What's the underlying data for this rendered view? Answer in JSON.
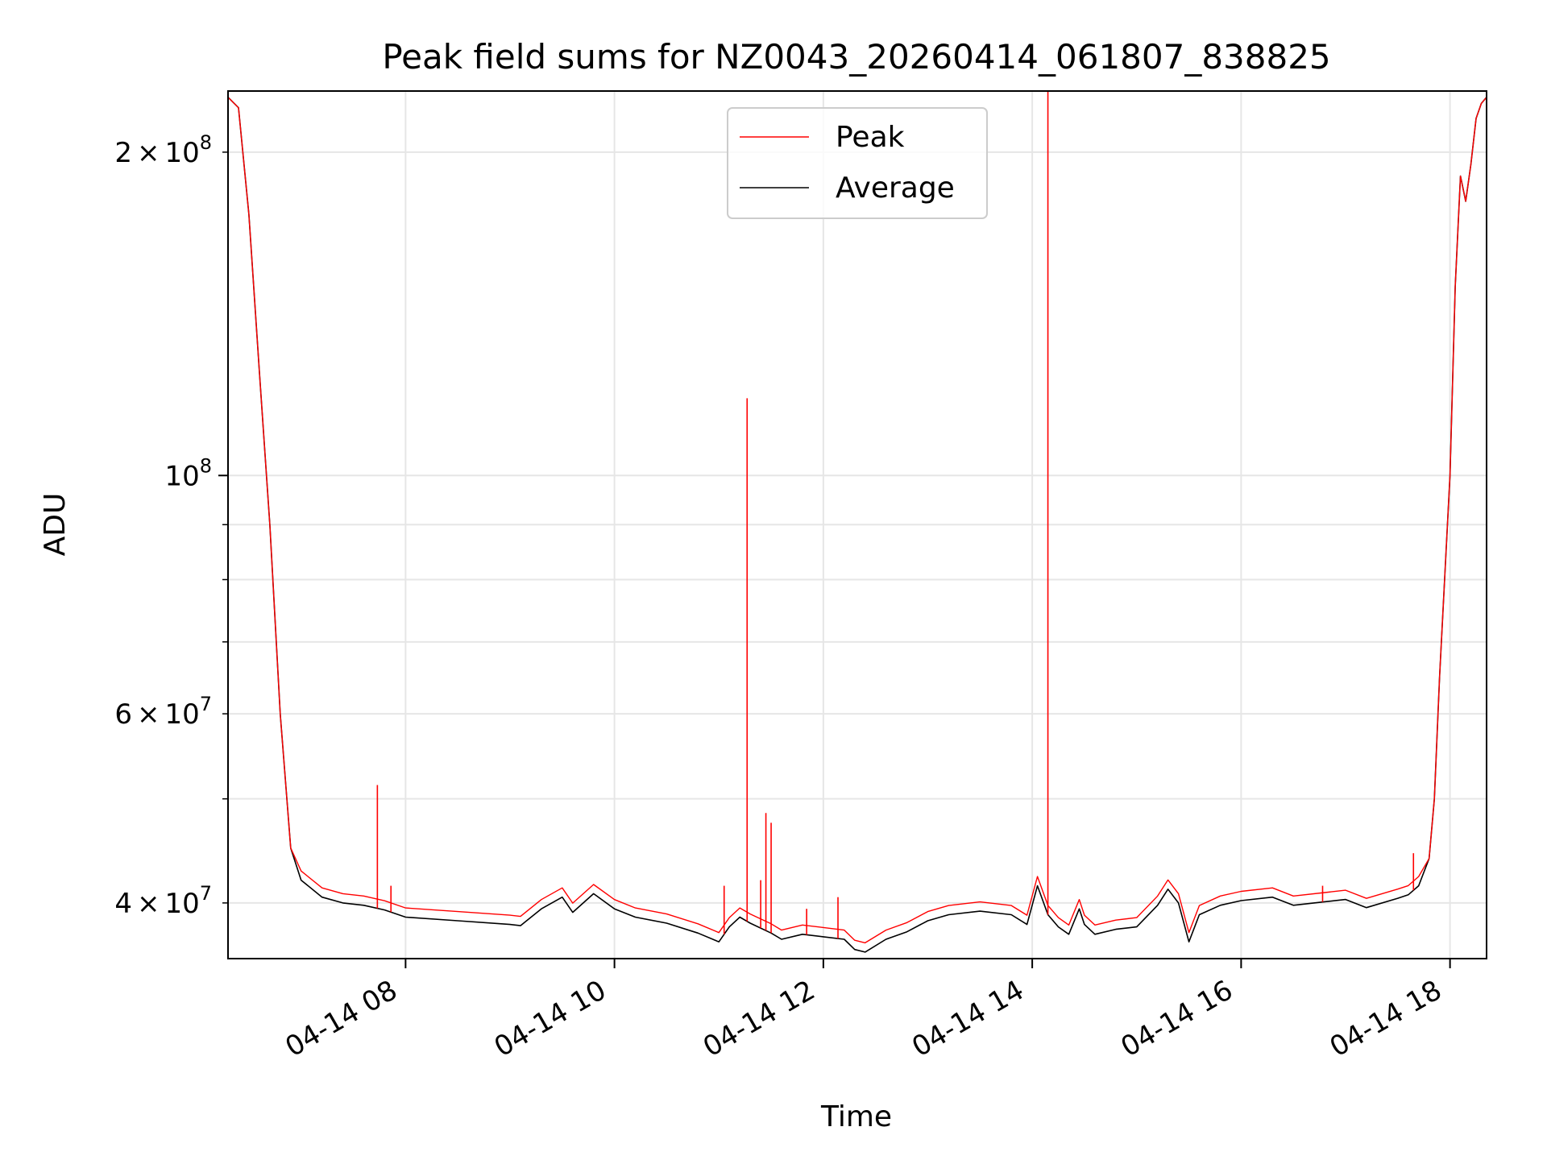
{
  "chart_data": {
    "type": "line",
    "title": "Peak field sums for NZ0043_20260414_061807_838825",
    "xlabel": "Time",
    "ylabel": "ADU",
    "yscale": "log",
    "xlim_hours": [
      6.3,
      18.35
    ],
    "ylim": [
      35500000,
      228000000
    ],
    "grid": true,
    "legend_position": "upper-center",
    "colors": {
      "peak": "#ff0000",
      "average": "#000000",
      "grid": "#e6e6e6"
    },
    "x_ticks": [
      {
        "hour": 8,
        "label": "04-14 08"
      },
      {
        "hour": 10,
        "label": "04-14 10"
      },
      {
        "hour": 12,
        "label": "04-14 12"
      },
      {
        "hour": 14,
        "label": "04-14 14"
      },
      {
        "hour": 16,
        "label": "04-14 16"
      },
      {
        "hour": 18,
        "label": "04-14 18"
      }
    ],
    "y_ticks_major": [
      {
        "value": 100000000,
        "base": "10",
        "exp": "8"
      }
    ],
    "y_ticks_minor": [
      {
        "value": 40000000,
        "mant": "4",
        "base": "10",
        "exp": "7"
      },
      {
        "value": 60000000,
        "mant": "6",
        "base": "10",
        "exp": "7"
      },
      {
        "value": 200000000,
        "mant": "2",
        "base": "10",
        "exp": "8"
      }
    ],
    "y_minor_unlabeled": [
      50000000,
      70000000,
      80000000,
      90000000
    ],
    "series": [
      {
        "name": "Average",
        "x_hours": [
          6.3,
          6.4,
          6.5,
          6.6,
          6.7,
          6.8,
          6.9,
          7.0,
          7.2,
          7.4,
          7.6,
          7.8,
          8.0,
          8.5,
          9.0,
          9.1,
          9.3,
          9.5,
          9.6,
          9.8,
          10.0,
          10.2,
          10.5,
          10.8,
          11.0,
          11.1,
          11.2,
          11.3,
          11.5,
          11.6,
          11.8,
          12.0,
          12.2,
          12.3,
          12.4,
          12.6,
          12.8,
          13.0,
          13.2,
          13.5,
          13.8,
          13.95,
          14.05,
          14.15,
          14.25,
          14.35,
          14.45,
          14.5,
          14.6,
          14.8,
          15.0,
          15.2,
          15.3,
          15.4,
          15.5,
          15.6,
          15.8,
          16.0,
          16.3,
          16.5,
          16.8,
          17.0,
          17.2,
          17.5,
          17.6,
          17.7,
          17.8,
          17.85,
          17.9,
          18.0,
          18.05,
          18.1,
          18.15,
          18.2,
          18.25,
          18.3,
          18.35
        ],
        "y": [
          225000000,
          220000000,
          175000000,
          125000000,
          90000000,
          60000000,
          45000000,
          42000000,
          40500000,
          40000000,
          39800000,
          39400000,
          38800000,
          38500000,
          38200000,
          38100000,
          39500000,
          40500000,
          39200000,
          40800000,
          39500000,
          38800000,
          38300000,
          37500000,
          36800000,
          38000000,
          38800000,
          38300000,
          37500000,
          37000000,
          37400000,
          37200000,
          37000000,
          36200000,
          36000000,
          37000000,
          37600000,
          38500000,
          39000000,
          39300000,
          39000000,
          38200000,
          41500000,
          39000000,
          38000000,
          37400000,
          39500000,
          38200000,
          37400000,
          37800000,
          38000000,
          39800000,
          41200000,
          40000000,
          36800000,
          39000000,
          39800000,
          40200000,
          40500000,
          39800000,
          40100000,
          40300000,
          39600000,
          40400000,
          40700000,
          41500000,
          44000000,
          50000000,
          65000000,
          100000000,
          150000000,
          190000000,
          180000000,
          195000000,
          215000000,
          222000000,
          225000000
        ]
      },
      {
        "name": "Peak",
        "spikes": [
          {
            "hour": 7.73,
            "value": 51500000
          },
          {
            "hour": 7.86,
            "value": 41500000
          },
          {
            "hour": 11.05,
            "value": 41500000
          },
          {
            "hour": 11.27,
            "value": 118000000
          },
          {
            "hour": 11.4,
            "value": 42000000
          },
          {
            "hour": 11.45,
            "value": 48500000
          },
          {
            "hour": 11.5,
            "value": 47500000
          },
          {
            "hour": 11.84,
            "value": 39500000
          },
          {
            "hour": 12.14,
            "value": 40500000
          },
          {
            "hour": 14.15,
            "value": 228000000
          },
          {
            "hour": 16.78,
            "value": 41500000
          },
          {
            "hour": 17.65,
            "value": 44500000
          }
        ]
      }
    ]
  }
}
